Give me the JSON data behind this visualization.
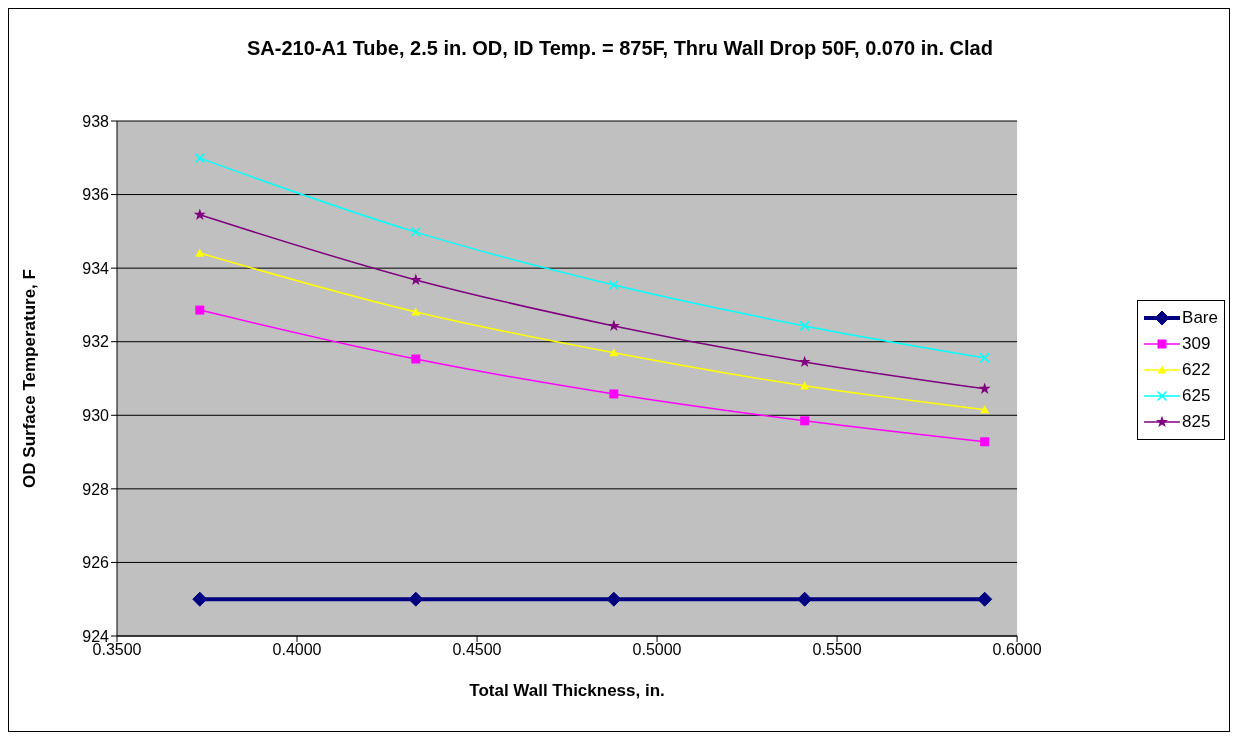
{
  "chart_data": {
    "type": "line",
    "title": "SA-210-A1 Tube, 2.5 in. OD, ID Temp. = 875F, Thru Wall Drop 50F, 0.070 in. Clad",
    "xlabel": "Total Wall Thickness, in.",
    "ylabel": "OD Surface Temperature, F",
    "x": [
      0.373,
      0.433,
      0.488,
      0.541,
      0.591
    ],
    "series": [
      {
        "name": "Bare",
        "color": "#000080",
        "marker": "diamond",
        "values": [
          925,
          925,
          925,
          925,
          925
        ]
      },
      {
        "name": "309",
        "color": "#ff00ff",
        "marker": "square",
        "values": [
          932.86,
          931.53,
          930.58,
          929.85,
          929.28
        ]
      },
      {
        "name": "622",
        "color": "#ffff00",
        "marker": "triangle",
        "values": [
          934.41,
          932.81,
          931.7,
          930.8,
          930.15
        ]
      },
      {
        "name": "625",
        "color": "#00ffff",
        "marker": "cross",
        "values": [
          936.99,
          934.98,
          933.54,
          932.43,
          931.56
        ]
      },
      {
        "name": "825",
        "color": "#800080",
        "marker": "star",
        "values": [
          935.45,
          933.68,
          932.43,
          931.45,
          930.72
        ]
      }
    ],
    "xlim": [
      0.35,
      0.6
    ],
    "xticks": [
      {
        "value": 0.35,
        "label": "0.3500"
      },
      {
        "value": 0.4,
        "label": "0.4000"
      },
      {
        "value": 0.45,
        "label": "0.4500"
      },
      {
        "value": 0.5,
        "label": "0.5000"
      },
      {
        "value": 0.55,
        "label": "0.5500"
      },
      {
        "value": 0.6,
        "label": "0.6000"
      }
    ],
    "ylim": [
      924,
      938
    ],
    "yticks": [
      924,
      926,
      928,
      930,
      932,
      934,
      936,
      938
    ],
    "grid": "y",
    "legend": "right"
  }
}
